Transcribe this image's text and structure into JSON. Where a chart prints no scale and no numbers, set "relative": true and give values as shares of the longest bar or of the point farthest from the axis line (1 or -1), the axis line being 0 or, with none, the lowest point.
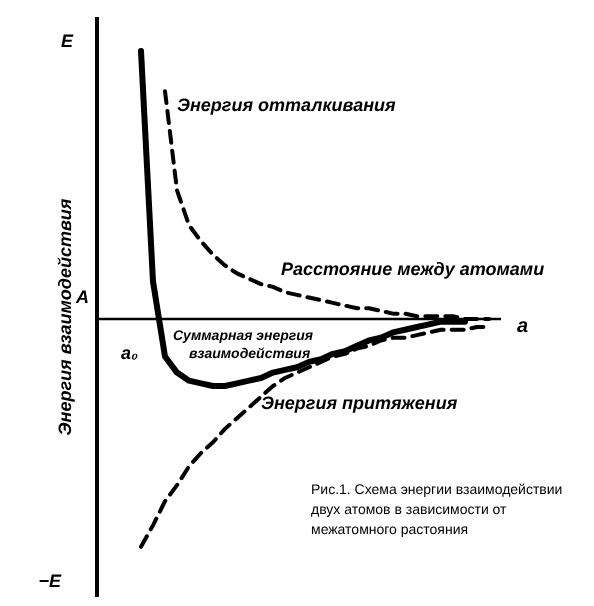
{
  "chart_data": {
    "type": "line",
    "relative": true,
    "ylabel": "Энергия взаимодействия",
    "xlabel": "a",
    "categories": [
      null,
      null,
      null,
      null,
      null,
      null,
      null,
      null,
      null,
      null,
      null,
      null,
      null,
      null,
      null,
      null,
      null,
      null,
      null,
      null,
      null,
      null,
      null,
      null,
      null,
      null,
      null,
      null,
      null,
      null,
      null
    ],
    "series": [
      {
        "name": "Энергия отталкивания",
        "color": "#000000",
        "line_style": "dashed",
        "values": [
          null,
          null,
          0.85,
          0.48,
          0.35,
          0.29,
          0.24,
          0.2,
          0.17,
          0.15,
          0.13,
          0.12,
          0.1,
          0.09,
          0.08,
          0.07,
          0.06,
          0.05,
          0.04,
          0.04,
          0.03,
          0.02,
          0.02,
          0.01,
          0.01,
          0.01,
          0.01,
          0,
          0,
          0,
          null
        ]
      },
      {
        "name": "Суммарная энергия взаимодействия",
        "color": "#000000",
        "line_style": "solid",
        "values": [
          1.0,
          0.14,
          -0.14,
          -0.2,
          -0.23,
          -0.24,
          -0.25,
          -0.25,
          -0.24,
          -0.23,
          -0.22,
          -0.2,
          -0.19,
          -0.18,
          -0.16,
          -0.15,
          -0.13,
          -0.12,
          -0.1,
          -0.08,
          -0.07,
          -0.05,
          -0.04,
          -0.03,
          -0.02,
          -0.01,
          -0.01,
          -0.01,
          null,
          null,
          null
        ]
      },
      {
        "name": "Энергия притяжения",
        "color": "#000000",
        "line_style": "dashed",
        "values": [
          -0.85,
          -0.77,
          -0.68,
          -0.62,
          -0.55,
          -0.5,
          -0.46,
          -0.41,
          -0.37,
          -0.33,
          -0.29,
          -0.25,
          -0.22,
          -0.2,
          -0.18,
          -0.16,
          -0.14,
          -0.13,
          -0.11,
          -0.1,
          -0.08,
          -0.07,
          -0.07,
          -0.06,
          -0.05,
          -0.04,
          -0.04,
          -0.04,
          -0.03,
          -0.03,
          null
        ]
      }
    ],
    "annotations": [
      "E",
      "−E",
      "A",
      "a₀",
      "Расстояние между атомами",
      "Рис.1. Схема энергии взаимодействии",
      "двух атомов в зависимости от",
      "межатомного растояния"
    ]
  }
}
